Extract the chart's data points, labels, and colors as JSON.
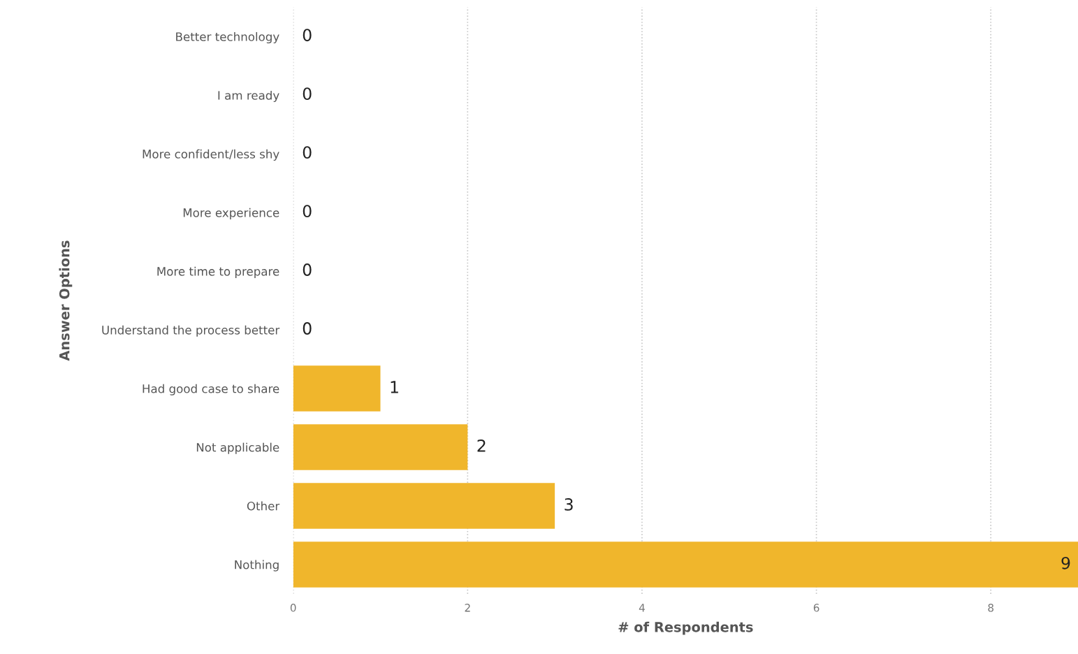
{
  "chart_data": {
    "type": "bar",
    "orientation": "horizontal",
    "xlabel": "# of Respondents",
    "ylabel": "Answer Options",
    "categories": [
      "Better technology",
      "I am ready",
      "More confident/less shy",
      "More experience",
      "More time to prepare",
      "Understand the process better",
      "Had good case to share",
      "Not applicable",
      "Other",
      "Nothing"
    ],
    "values": [
      0,
      0,
      0,
      0,
      0,
      0,
      1,
      2,
      3,
      9
    ],
    "color": "#f0b62c",
    "xlim": [
      0,
      9
    ],
    "xticks": [
      0,
      2,
      4,
      6,
      8
    ],
    "grid": "x",
    "line_style": "dotted",
    "data_labels": true
  }
}
